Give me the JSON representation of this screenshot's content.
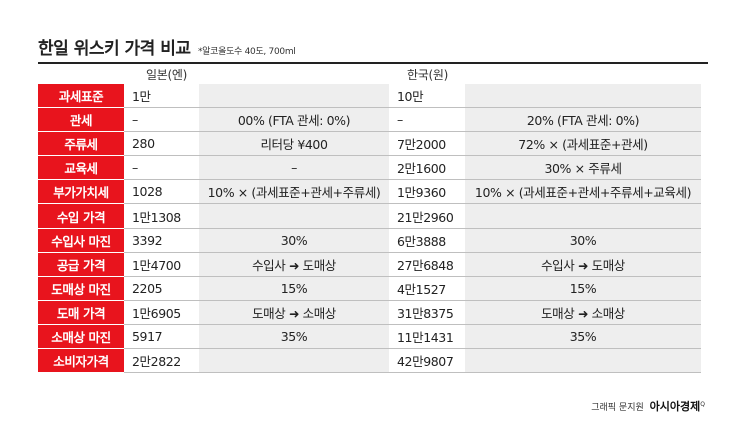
{
  "title": "한일 위스키 가격 비교",
  "subtitle": "*알코올도수 40도, 700ml",
  "columns": {
    "japan": "일본(엔)",
    "korea": "한국(원)"
  },
  "rows": [
    {
      "label": "과세표준",
      "jp_value": "1만",
      "jp_calc": "",
      "kr_value": "10만",
      "kr_calc": ""
    },
    {
      "label": "관세",
      "jp_value": "–",
      "jp_calc": "00% (FTA 관세: 0%)",
      "kr_value": "–",
      "kr_calc": "20% (FTA 관세: 0%)"
    },
    {
      "label": "주류세",
      "jp_value": "280",
      "jp_calc": "리터당 ¥400",
      "kr_value": "7만2000",
      "kr_calc": "72% × (과세표준+관세)"
    },
    {
      "label": "교육세",
      "jp_value": "–",
      "jp_calc": "–",
      "kr_value": "2만1600",
      "kr_calc": "30% × 주류세"
    },
    {
      "label": "부가가치세",
      "jp_value": "1028",
      "jp_calc": "10% × (과세표준+관세+주류세)",
      "kr_value": "1만9360",
      "kr_calc": "10% × (과세표준+관세+주류세+교육세)"
    },
    {
      "label": "수입 가격",
      "jp_value": "1만1308",
      "jp_calc": "",
      "kr_value": "21만2960",
      "kr_calc": ""
    },
    {
      "label": "수입사 마진",
      "jp_value": "3392",
      "jp_calc": "30%",
      "kr_value": "6만3888",
      "kr_calc": "30%"
    },
    {
      "label": "공급 가격",
      "jp_value": "1만4700",
      "jp_calc": "수입사 ➜ 도매상",
      "kr_value": "27만6848",
      "kr_calc": "수입사 ➜ 도매상"
    },
    {
      "label": "도매상 마진",
      "jp_value": "2205",
      "jp_calc": "15%",
      "kr_value": "4만1527",
      "kr_calc": "15%"
    },
    {
      "label": "도매 가격",
      "jp_value": "1만6905",
      "jp_calc": "도매상 ➜ 소매상",
      "kr_value": "31만8375",
      "kr_calc": "도매상 ➜ 소매상"
    },
    {
      "label": "소매상 마진",
      "jp_value": "5917",
      "jp_calc": "35%",
      "kr_value": "11만1431",
      "kr_calc": "35%"
    },
    {
      "label": "소비자가격",
      "jp_value": "2만2822",
      "jp_calc": "",
      "kr_value": "42만9807",
      "kr_calc": ""
    }
  ],
  "credit": {
    "text": "그래픽 문지원",
    "brand": "아시아경제",
    "mark": "Q"
  },
  "colors": {
    "label_bg": "#e8141d",
    "calc_bg": "#eeeeee"
  }
}
